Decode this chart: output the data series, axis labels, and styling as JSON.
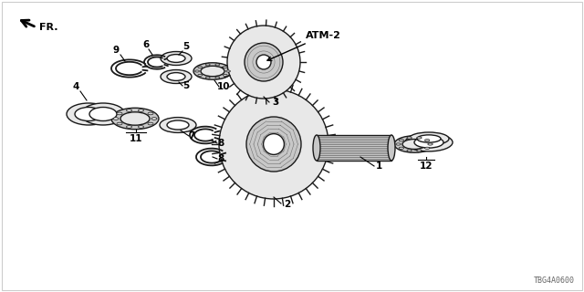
{
  "bg_color": "#ffffff",
  "border_color": "#1a1a1a",
  "part_fill": "#e8e8e8",
  "part_fill2": "#c8c8c8",
  "part_fill3": "#d8d8d8",
  "diagram_code": "TBG4A0600",
  "label_ATM2": "ATM-2",
  "label_FR": "FR."
}
